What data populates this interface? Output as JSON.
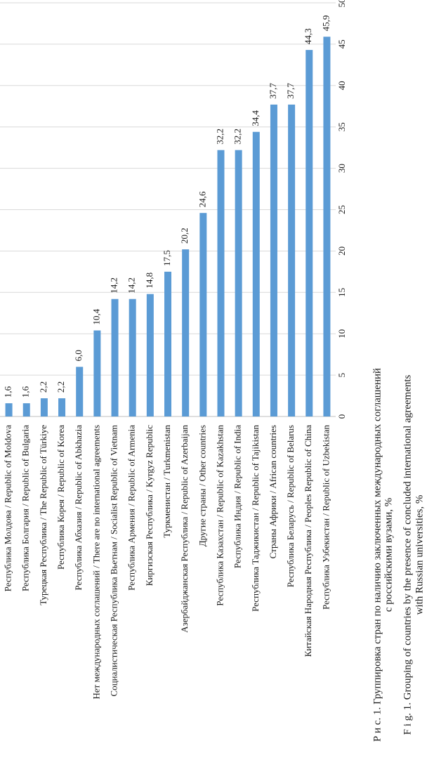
{
  "chart_data": {
    "type": "bar",
    "orientation": "horizontal",
    "categories": [
      "Республика Молдова / Republic of Moldova",
      "Республика Болгария / Republic of Bulgaria",
      "Турецкая Республика / The Republic of Türkiye",
      "Республика Корея / Republic of Korea",
      "Республика Абхазия / Republic of Abkhazia",
      "Нет международных соглашений / There are no international agreements",
      "Социалистическая Республика Вьетнам / Socialist Republic of Vietnam",
      "Республика Армения / Republic of Armenia",
      "Киргизская Республика / Kyrgyz Republic",
      "Туркменистан / Turkmenistan",
      "Азербайджанская Республика / Republic of Azerbaijan",
      "Другие страны / Other countries",
      "Республика Казахстан / Republic of Kazakhstan",
      "Республика Индия / Republic of India",
      "Республика Таджикистан / Republic of Tajikistan",
      "Страны Африки / African countries",
      "Республика Беларусь / Republic of Belarus",
      "Китайская Народная Республика / Peoples Republic of China",
      "Республика Узбекистан / Republic of Uzbekistan"
    ],
    "values": [
      1.6,
      1.6,
      2.2,
      2.2,
      6.0,
      10.4,
      14.2,
      14.2,
      14.8,
      17.5,
      20.2,
      24.6,
      32.2,
      32.2,
      34.4,
      37.7,
      37.7,
      44.3,
      45.9
    ],
    "value_labels": [
      "1,6",
      "1,6",
      "2,2",
      "2,2",
      "6,0",
      "10,4",
      "14,2",
      "14,2",
      "14,8",
      "17,5",
      "20,2",
      "24,6",
      "32,2",
      "32,2",
      "34,4",
      "37,7",
      "37,7",
      "44,3",
      "45,9"
    ],
    "color": "#5b9bd5",
    "xlim": [
      0,
      50
    ],
    "xticks": [
      0,
      5,
      10,
      15,
      20,
      25,
      30,
      35,
      40,
      45,
      50
    ],
    "grid": true,
    "caption": [
      "Р и с.  1.  Группировка стран по наличию заключенных международных соглашений",
      "с российскими вузами, %",
      "F i g.  1.  Grouping of countries by the presence of concluded international agreements",
      "with Russian universities, %"
    ]
  }
}
